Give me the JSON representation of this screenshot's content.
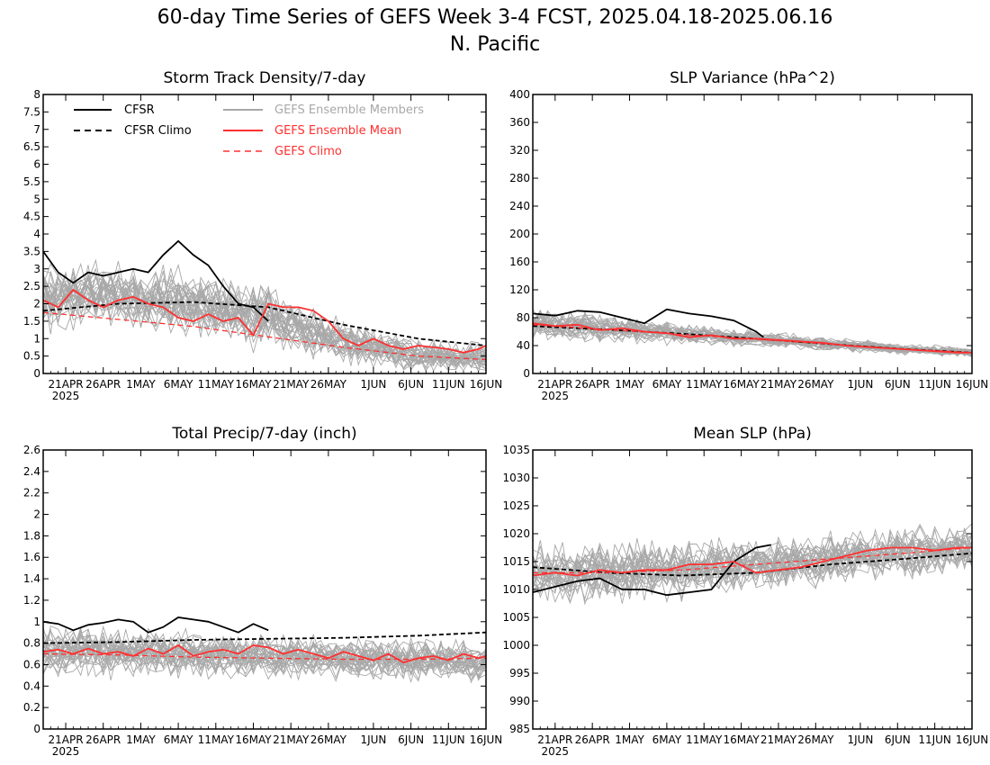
{
  "figure": {
    "title": "60-day Time Series of GEFS Week 3-4 FCST, 2025.04.18-2025.06.16",
    "subtitle": "N. Pacific"
  },
  "legend": {
    "cfsr": "CFSR",
    "cfsr_climo": "CFSR Climo",
    "members": "GEFS Ensemble Members",
    "ens_mean": "GEFS Ensemble Mean",
    "gefs_climo": "GEFS Climo"
  },
  "colors": {
    "cfsr": "#000000",
    "members": "#a8a8a8",
    "ens_mean": "#ff3030",
    "gefs_climo": "#ff3030",
    "cfsr_climo": "#000000"
  },
  "x_axis": {
    "tick_labels": [
      "21APR",
      "26APR",
      "1MAY",
      "6MAY",
      "11MAY",
      "16MAY",
      "21MAY",
      "26MAY",
      "1JUN",
      "6JUN",
      "11JUN",
      "16JUN"
    ],
    "tick_days": [
      3,
      8,
      13,
      18,
      23,
      28,
      33,
      38,
      44,
      49,
      54,
      59
    ],
    "year_label": "2025",
    "xlim": [
      0,
      59
    ]
  },
  "chart_data": [
    {
      "type": "line",
      "title": "Storm Track Density/7-day",
      "ylim": [
        0,
        8
      ],
      "ytick_labels": [
        "0",
        "0.5",
        "1",
        "1.5",
        "2",
        "2.5",
        "3",
        "3.5",
        "4",
        "4.5",
        "5",
        "5.5",
        "6",
        "6.5",
        "7",
        "7.5",
        "8"
      ],
      "legend_shown": true,
      "series": [
        {
          "name": "CFSR",
          "x": [
            0,
            2,
            4,
            6,
            8,
            10,
            12,
            14,
            16,
            18,
            20,
            22,
            24,
            26,
            28,
            30
          ],
          "values": [
            3.5,
            2.9,
            2.6,
            2.9,
            2.8,
            2.9,
            3.0,
            2.9,
            3.4,
            3.8,
            3.4,
            3.1,
            2.5,
            2.0,
            1.9,
            1.5
          ]
        },
        {
          "name": "CFSR Climo",
          "x": [
            0,
            10,
            20,
            30,
            40,
            50,
            59
          ],
          "values": [
            1.8,
            2.0,
            2.05,
            1.9,
            1.4,
            1.0,
            0.8
          ]
        },
        {
          "name": "GEFS Ensemble Mean",
          "x": [
            0,
            2,
            4,
            6,
            8,
            10,
            12,
            14,
            16,
            18,
            20,
            22,
            24,
            26,
            28,
            30,
            32,
            34,
            36,
            38,
            40,
            42,
            44,
            46,
            48,
            50,
            52,
            54,
            56,
            58,
            59
          ],
          "values": [
            2.1,
            1.9,
            2.4,
            2.1,
            1.9,
            2.1,
            2.2,
            2.0,
            1.9,
            1.6,
            1.5,
            1.7,
            1.5,
            1.6,
            1.1,
            2.0,
            1.9,
            1.9,
            1.8,
            1.5,
            1.0,
            0.8,
            1.0,
            0.8,
            0.7,
            0.8,
            0.75,
            0.7,
            0.6,
            0.7,
            0.8
          ]
        },
        {
          "name": "GEFS Climo",
          "x": [
            0,
            10,
            20,
            30,
            40,
            50,
            59
          ],
          "values": [
            1.75,
            1.55,
            1.35,
            1.05,
            0.75,
            0.5,
            0.4
          ]
        }
      ],
      "members": {
        "count": 30,
        "center_x": [
          0,
          10,
          20,
          30,
          40,
          50,
          59
        ],
        "center": [
          2.2,
          2.2,
          2.0,
          1.6,
          0.9,
          0.5,
          0.45
        ],
        "spread": [
          1.2,
          1.3,
          1.3,
          1.2,
          0.8,
          0.6,
          0.55
        ],
        "ymin": 0
      }
    },
    {
      "type": "line",
      "title": "SLP Variance (hPa^2)",
      "ylim": [
        0,
        400
      ],
      "ytick_labels": [
        "0",
        "40",
        "80",
        "120",
        "160",
        "200",
        "240",
        "280",
        "320",
        "360",
        "400"
      ],
      "legend_shown": false,
      "series": [
        {
          "name": "CFSR",
          "x": [
            0,
            3,
            6,
            9,
            12,
            15,
            18,
            21,
            24,
            27,
            30,
            31
          ],
          "values": [
            86,
            83,
            90,
            88,
            80,
            72,
            92,
            86,
            82,
            76,
            60,
            52
          ]
        },
        {
          "name": "CFSR Climo",
          "x": [
            0,
            10,
            20,
            30,
            40,
            50,
            59
          ],
          "values": [
            68,
            63,
            57,
            50,
            42,
            35,
            30
          ]
        },
        {
          "name": "GEFS Ensemble Mean",
          "x": [
            0,
            3,
            6,
            9,
            12,
            15,
            18,
            21,
            24,
            27,
            30,
            33,
            36,
            39,
            42,
            45,
            48,
            51,
            54,
            57,
            59
          ],
          "values": [
            72,
            68,
            70,
            62,
            65,
            60,
            58,
            52,
            55,
            50,
            50,
            48,
            46,
            44,
            40,
            38,
            36,
            34,
            32,
            30,
            30
          ]
        },
        {
          "name": "GEFS Climo",
          "x": [
            0,
            10,
            20,
            30,
            40,
            50,
            59
          ],
          "values": [
            70,
            63,
            56,
            49,
            42,
            35,
            30
          ]
        }
      ],
      "members": {
        "count": 30,
        "center_x": [
          0,
          10,
          20,
          30,
          40,
          50,
          59
        ],
        "center": [
          72,
          64,
          57,
          50,
          42,
          35,
          30
        ],
        "spread": [
          30,
          26,
          20,
          16,
          12,
          10,
          10
        ],
        "ymin": 0
      }
    },
    {
      "type": "line",
      "title": "Total Precip/7-day (inch)",
      "ylim": [
        0,
        2.6
      ],
      "ytick_labels": [
        "0",
        "0.2",
        "0.4",
        "0.6",
        "0.8",
        "1",
        "1.2",
        "1.4",
        "1.6",
        "1.8",
        "2",
        "2.2",
        "2.4",
        "2.6"
      ],
      "legend_shown": false,
      "series": [
        {
          "name": "CFSR",
          "x": [
            0,
            2,
            4,
            6,
            8,
            10,
            12,
            14,
            16,
            18,
            20,
            22,
            24,
            26,
            28,
            30
          ],
          "values": [
            1.0,
            0.98,
            0.92,
            0.97,
            0.99,
            1.02,
            1.0,
            0.9,
            0.95,
            1.04,
            1.02,
            1.0,
            0.95,
            0.9,
            0.98,
            0.92
          ]
        },
        {
          "name": "CFSR Climo",
          "x": [
            0,
            10,
            20,
            30,
            40,
            50,
            59
          ],
          "values": [
            0.8,
            0.81,
            0.83,
            0.84,
            0.85,
            0.87,
            0.9
          ]
        },
        {
          "name": "GEFS Ensemble Mean",
          "x": [
            0,
            2,
            4,
            6,
            8,
            10,
            12,
            14,
            16,
            18,
            20,
            22,
            24,
            26,
            28,
            30,
            32,
            34,
            36,
            38,
            40,
            42,
            44,
            46,
            48,
            50,
            52,
            54,
            56,
            58,
            59
          ],
          "values": [
            0.72,
            0.74,
            0.7,
            0.75,
            0.7,
            0.72,
            0.68,
            0.75,
            0.7,
            0.78,
            0.68,
            0.72,
            0.74,
            0.7,
            0.78,
            0.76,
            0.7,
            0.74,
            0.7,
            0.66,
            0.72,
            0.68,
            0.64,
            0.7,
            0.62,
            0.66,
            0.68,
            0.64,
            0.7,
            0.66,
            0.68
          ]
        },
        {
          "name": "GEFS Climo",
          "x": [
            0,
            10,
            20,
            30,
            40,
            50,
            59
          ],
          "values": [
            0.7,
            0.69,
            0.67,
            0.66,
            0.65,
            0.65,
            0.66
          ]
        }
      ],
      "members": {
        "count": 30,
        "center_x": [
          0,
          10,
          20,
          30,
          40,
          50,
          59
        ],
        "center": [
          0.72,
          0.72,
          0.7,
          0.68,
          0.66,
          0.64,
          0.62
        ],
        "spread": [
          0.3,
          0.3,
          0.3,
          0.28,
          0.26,
          0.26,
          0.26
        ],
        "ymin": 0
      }
    },
    {
      "type": "line",
      "title": "Mean SLP (hPa)",
      "ylim": [
        985,
        1035
      ],
      "ytick_labels": [
        "985",
        "990",
        "995",
        "1000",
        "1005",
        "1010",
        "1015",
        "1020",
        "1025",
        "1030",
        "1035"
      ],
      "legend_shown": false,
      "series": [
        {
          "name": "CFSR",
          "x": [
            0,
            3,
            6,
            9,
            12,
            15,
            18,
            21,
            24,
            27,
            30,
            32
          ],
          "values": [
            1009.5,
            1010.5,
            1011.5,
            1012.0,
            1010.0,
            1010.0,
            1009.0,
            1009.5,
            1010.0,
            1015.0,
            1017.5,
            1018.0
          ]
        },
        {
          "name": "CFSR Climo",
          "x": [
            0,
            10,
            20,
            30,
            40,
            50,
            59
          ],
          "values": [
            1014.0,
            1013.0,
            1012.5,
            1013.0,
            1014.5,
            1015.5,
            1016.5
          ]
        },
        {
          "name": "GEFS Ensemble Mean",
          "x": [
            0,
            3,
            6,
            9,
            12,
            15,
            18,
            21,
            24,
            27,
            30,
            33,
            36,
            39,
            42,
            45,
            48,
            51,
            54,
            57,
            59
          ],
          "values": [
            1012.5,
            1013.0,
            1012.5,
            1013.5,
            1013.0,
            1013.5,
            1013.5,
            1014.5,
            1014.5,
            1015.0,
            1013.0,
            1013.5,
            1014.0,
            1015.0,
            1016.0,
            1017.0,
            1017.5,
            1017.5,
            1017.0,
            1017.5,
            1017.5
          ]
        },
        {
          "name": "GEFS Climo",
          "x": [
            0,
            10,
            20,
            30,
            40,
            50,
            59
          ],
          "values": [
            1013.0,
            1013.0,
            1013.5,
            1014.5,
            1015.5,
            1016.5,
            1017.5
          ]
        }
      ],
      "members": {
        "count": 30,
        "center_x": [
          0,
          10,
          20,
          30,
          40,
          50,
          59
        ],
        "center": [
          1013,
          1013,
          1013.5,
          1014.5,
          1015.5,
          1016.5,
          1017.5
        ],
        "spread": [
          7,
          7,
          7,
          6,
          6,
          6,
          6
        ],
        "ymin": 985
      }
    }
  ]
}
